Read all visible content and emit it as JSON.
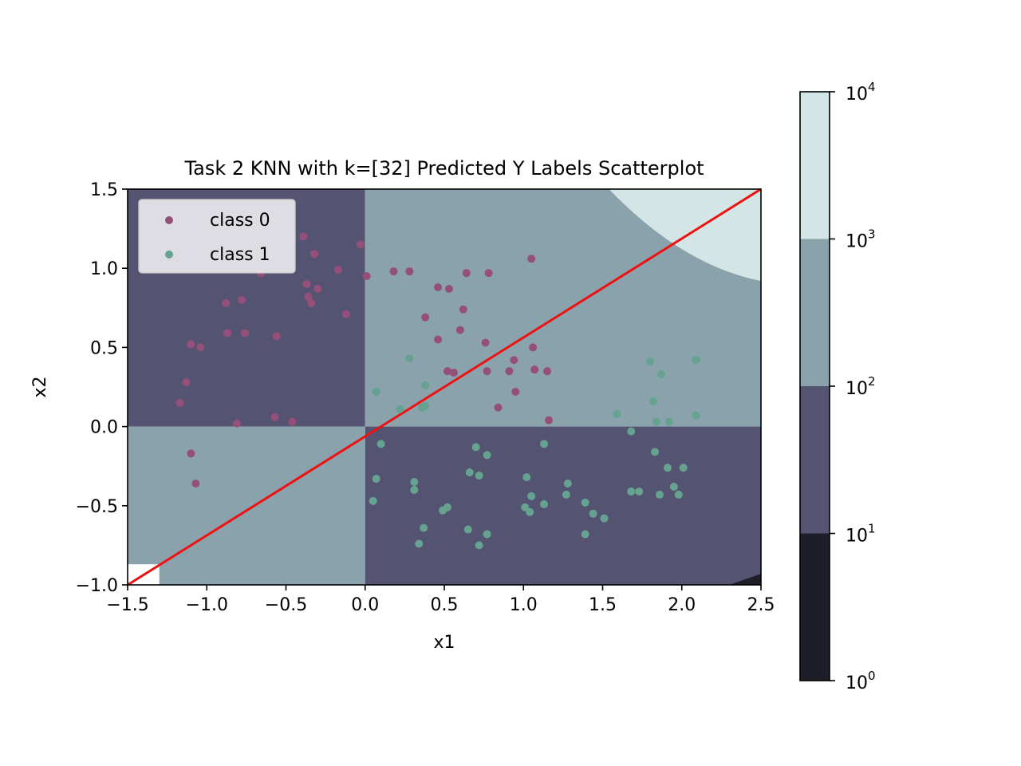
{
  "chart_data": {
    "type": "scatter",
    "title": "Task 2 KNN with k=[32] Predicted Y Labels Scatterplot",
    "xlabel": "x1",
    "ylabel": "x2",
    "xlim": [
      -1.5,
      2.5
    ],
    "ylim": [
      -1.0,
      1.5
    ],
    "x_ticks": [
      -1.5,
      -1.0,
      -0.5,
      0.0,
      0.5,
      1.0,
      1.5,
      2.0,
      2.5
    ],
    "y_ticks": [
      -1.0,
      -0.5,
      0.0,
      0.5,
      1.0,
      1.5
    ],
    "x_tick_labels": [
      "−1.5",
      "−1.0",
      "−0.5",
      "0.0",
      "0.5",
      "1.0",
      "1.5",
      "2.0",
      "2.5"
    ],
    "y_tick_labels": [
      "−1.0",
      "−0.5",
      "0.0",
      "0.5",
      "1.0",
      "1.5"
    ],
    "grid": false,
    "legend": {
      "placement": "upper-left"
    },
    "background_contour": {
      "scale": "log",
      "levels": [
        1,
        10,
        100,
        1000,
        10000
      ],
      "level_colors": [
        "#1e1e28",
        "#545472",
        "#8aa2ab",
        "#d4e5e6"
      ],
      "regions": [
        {
          "x": [
            -1.5,
            0.0
          ],
          "y": [
            0.0,
            1.5
          ],
          "band": 1
        },
        {
          "x": [
            0.0,
            2.5
          ],
          "y": [
            0.0,
            1.5
          ],
          "band": 2
        },
        {
          "x": [
            -1.5,
            0.0
          ],
          "y": [
            -1.0,
            0.0
          ],
          "band": 2
        },
        {
          "x": [
            0.0,
            2.5
          ],
          "y": [
            -1.0,
            0.0
          ],
          "band": 1
        }
      ],
      "top_right_band": 3,
      "bottom_right_band": 0
    },
    "colorbar": {
      "scale": "log",
      "tick_values": [
        1,
        10,
        100,
        1000,
        10000
      ],
      "tick_exponents": [
        "0",
        "1",
        "2",
        "3",
        "4"
      ],
      "tick_base": "10"
    },
    "decision_line": {
      "color": "#ee1111",
      "points": [
        [
          -1.5,
          -1.0
        ],
        [
          2.5,
          1.5
        ]
      ]
    },
    "series": [
      {
        "name": "class 0",
        "color": "#95507a",
        "points": [
          [
            -0.39,
            1.2
          ],
          [
            -0.32,
            1.09
          ],
          [
            -0.03,
            1.15
          ],
          [
            -0.17,
            0.99
          ],
          [
            -0.66,
            0.97
          ],
          [
            0.01,
            0.95
          ],
          [
            0.18,
            0.98
          ],
          [
            0.28,
            0.98
          ],
          [
            0.64,
            0.97
          ],
          [
            0.78,
            0.97
          ],
          [
            1.05,
            1.06
          ],
          [
            -0.37,
            0.9
          ],
          [
            -0.3,
            0.87
          ],
          [
            -0.36,
            0.82
          ],
          [
            -0.34,
            0.78
          ],
          [
            -0.88,
            0.78
          ],
          [
            -0.78,
            0.8
          ],
          [
            0.46,
            0.88
          ],
          [
            0.53,
            0.87
          ],
          [
            0.62,
            0.74
          ],
          [
            -0.12,
            0.71
          ],
          [
            0.38,
            0.69
          ],
          [
            -0.87,
            0.59
          ],
          [
            -0.76,
            0.59
          ],
          [
            -0.56,
            0.57
          ],
          [
            -1.1,
            0.52
          ],
          [
            -1.04,
            0.5
          ],
          [
            0.46,
            0.55
          ],
          [
            0.6,
            0.61
          ],
          [
            0.76,
            0.53
          ],
          [
            1.06,
            0.5
          ],
          [
            -1.13,
            0.28
          ],
          [
            -1.17,
            0.15
          ],
          [
            -0.81,
            0.02
          ],
          [
            -0.57,
            0.06
          ],
          [
            -0.46,
            0.03
          ],
          [
            0.52,
            0.35
          ],
          [
            0.56,
            0.34
          ],
          [
            0.77,
            0.35
          ],
          [
            0.91,
            0.35
          ],
          [
            0.94,
            0.42
          ],
          [
            1.07,
            0.36
          ],
          [
            1.15,
            0.35
          ],
          [
            0.95,
            0.22
          ],
          [
            0.84,
            0.12
          ],
          [
            1.16,
            0.04
          ],
          [
            -1.1,
            -0.17
          ],
          [
            -1.07,
            -0.36
          ]
        ]
      },
      {
        "name": "class 1",
        "color": "#65a28f",
        "points": [
          [
            0.28,
            0.43
          ],
          [
            0.38,
            0.26
          ],
          [
            0.07,
            0.22
          ],
          [
            0.22,
            0.11
          ],
          [
            0.36,
            0.12
          ],
          [
            0.38,
            0.13
          ],
          [
            1.8,
            0.41
          ],
          [
            2.09,
            0.42
          ],
          [
            1.87,
            0.33
          ],
          [
            1.82,
            0.16
          ],
          [
            1.59,
            0.08
          ],
          [
            1.84,
            0.03
          ],
          [
            1.92,
            0.03
          ],
          [
            2.09,
            0.07
          ],
          [
            0.1,
            -0.11
          ],
          [
            0.7,
            -0.13
          ],
          [
            0.77,
            -0.18
          ],
          [
            1.13,
            -0.11
          ],
          [
            1.68,
            -0.03
          ],
          [
            1.83,
            -0.16
          ],
          [
            0.66,
            -0.29
          ],
          [
            0.72,
            -0.31
          ],
          [
            0.07,
            -0.33
          ],
          [
            0.31,
            -0.35
          ],
          [
            0.31,
            -0.4
          ],
          [
            1.02,
            -0.32
          ],
          [
            1.28,
            -0.36
          ],
          [
            1.91,
            -0.26
          ],
          [
            2.01,
            -0.26
          ],
          [
            1.95,
            -0.38
          ],
          [
            1.68,
            -0.41
          ],
          [
            1.73,
            -0.41
          ],
          [
            1.86,
            -0.43
          ],
          [
            1.98,
            -0.43
          ],
          [
            0.05,
            -0.47
          ],
          [
            0.49,
            -0.53
          ],
          [
            0.52,
            -0.51
          ],
          [
            1.01,
            -0.51
          ],
          [
            1.04,
            -0.54
          ],
          [
            1.05,
            -0.44
          ],
          [
            1.13,
            -0.49
          ],
          [
            1.27,
            -0.43
          ],
          [
            1.39,
            -0.48
          ],
          [
            1.44,
            -0.55
          ],
          [
            1.51,
            -0.58
          ],
          [
            0.37,
            -0.64
          ],
          [
            0.65,
            -0.65
          ],
          [
            0.77,
            -0.68
          ],
          [
            1.39,
            -0.68
          ],
          [
            0.34,
            -0.74
          ],
          [
            0.72,
            -0.75
          ]
        ]
      }
    ]
  }
}
